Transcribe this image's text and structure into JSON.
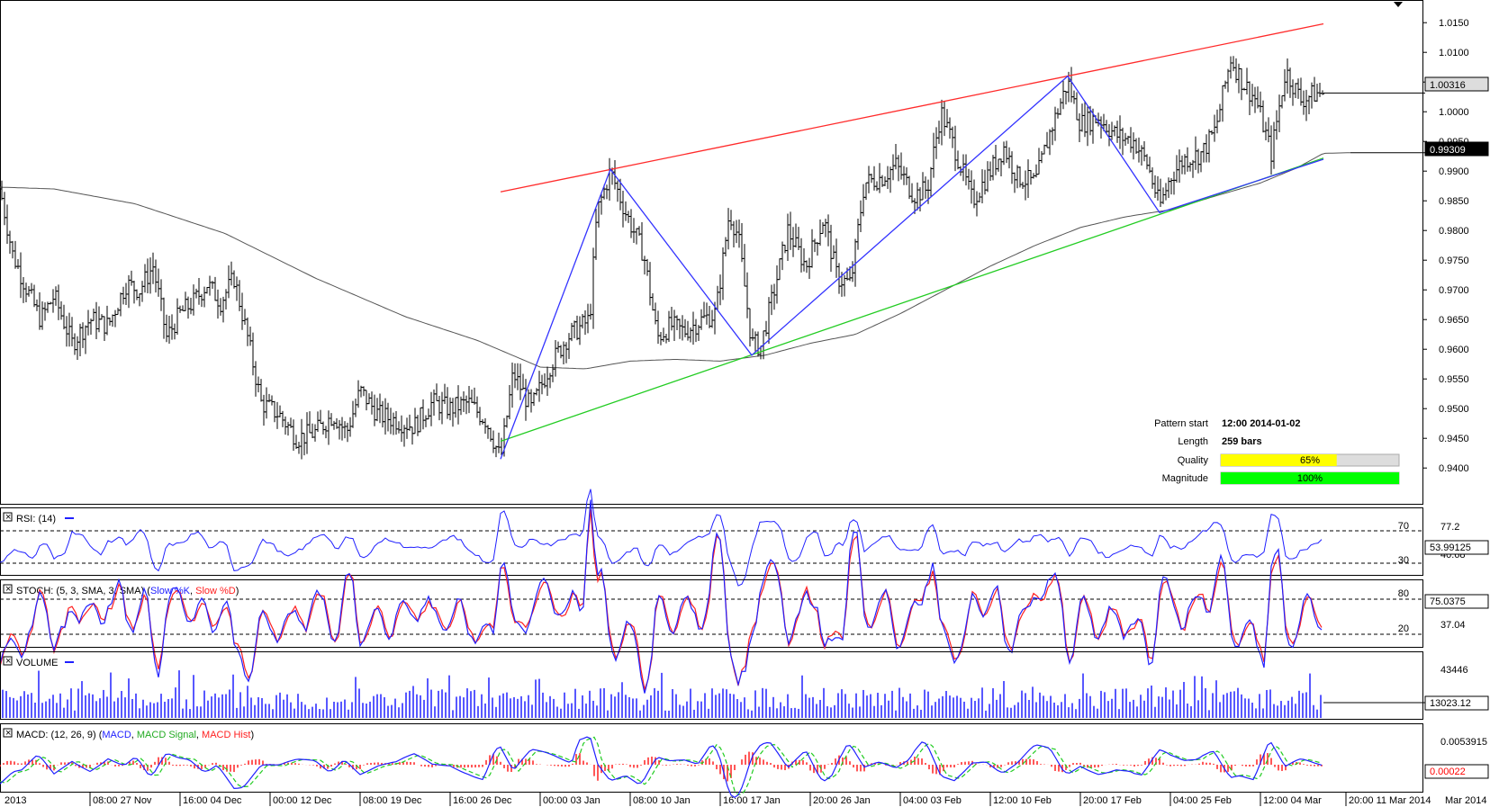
{
  "chart_data": {
    "type": "candlestick",
    "instrument_scale": {
      "price_ticks": [
        "1.0150",
        "1.0100",
        "1.0050",
        "1.0000",
        "0.9950",
        "0.9900",
        "0.9850",
        "0.9800",
        "0.9750",
        "0.9700",
        "0.9650",
        "0.9600",
        "0.9550",
        "0.9500",
        "0.9450",
        "0.9400"
      ],
      "price_range": [
        0.937,
        1.017
      ]
    },
    "x_labels": [
      "2013",
      "08:00 27 Nov",
      "16:00 04 Dec",
      "00:00 12 Dec",
      "08:00 19 Dec",
      "16:00 26 Dec",
      "00:00 03 Jan",
      "08:00 10 Jan",
      "16:00 17 Jan",
      "20:00 26 Jan",
      "04:00 03 Feb",
      "12:00 10 Feb",
      "20:00 17 Feb",
      "04:00 25 Feb",
      "12:00 04 Mar",
      "20:00 11 Mar 2014",
      "Mar 2014"
    ],
    "price_path": [
      [
        0,
        0.987
      ],
      [
        14,
        0.976
      ],
      [
        30,
        0.97
      ],
      [
        45,
        0.965
      ],
      [
        60,
        0.969
      ],
      [
        80,
        0.961
      ],
      [
        100,
        0.965
      ],
      [
        120,
        0.964
      ],
      [
        140,
        0.971
      ],
      [
        155,
        0.97
      ],
      [
        170,
        0.974
      ],
      [
        185,
        0.962
      ],
      [
        200,
        0.966
      ],
      [
        215,
        0.968
      ],
      [
        230,
        0.971
      ],
      [
        245,
        0.968
      ],
      [
        260,
        0.972
      ],
      [
        275,
        0.962
      ],
      [
        290,
        0.951
      ],
      [
        310,
        0.949
      ],
      [
        330,
        0.945
      ],
      [
        350,
        0.946
      ],
      [
        370,
        0.949
      ],
      [
        385,
        0.946
      ],
      [
        400,
        0.953
      ],
      [
        420,
        0.949
      ],
      [
        440,
        0.948
      ],
      [
        460,
        0.947
      ],
      [
        480,
        0.951
      ],
      [
        500,
        0.95
      ],
      [
        520,
        0.951
      ],
      [
        540,
        0.948
      ],
      [
        556,
        0.9415
      ],
      [
        570,
        0.956
      ],
      [
        590,
        0.95
      ],
      [
        610,
        0.957
      ],
      [
        630,
        0.962
      ],
      [
        655,
        0.965
      ],
      [
        663,
        0.983
      ],
      [
        678,
        0.99
      ],
      [
        695,
        0.983
      ],
      [
        715,
        0.976
      ],
      [
        730,
        0.962
      ],
      [
        745,
        0.964
      ],
      [
        760,
        0.963
      ],
      [
        780,
        0.965
      ],
      [
        795,
        0.966
      ],
      [
        810,
        0.983
      ],
      [
        820,
        0.979
      ],
      [
        835,
        0.961
      ],
      [
        845,
        0.9605
      ],
      [
        860,
        0.97
      ],
      [
        875,
        0.98
      ],
      [
        895,
        0.974
      ],
      [
        915,
        0.982
      ],
      [
        930,
        0.972
      ],
      [
        945,
        0.971
      ],
      [
        960,
        0.988
      ],
      [
        980,
        0.989
      ],
      [
        995,
        0.991
      ],
      [
        1015,
        0.986
      ],
      [
        1030,
        0.987
      ],
      [
        1045,
        1.0
      ],
      [
        1060,
        0.994
      ],
      [
        1080,
        0.985
      ],
      [
        1100,
        0.99
      ],
      [
        1115,
        0.994
      ],
      [
        1130,
        0.989
      ],
      [
        1150,
        0.988
      ],
      [
        1165,
        0.996
      ],
      [
        1186,
        1.005
      ],
      [
        1200,
        0.998
      ],
      [
        1220,
        0.999
      ],
      [
        1240,
        0.996
      ],
      [
        1260,
        0.995
      ],
      [
        1275,
        0.991
      ],
      [
        1288,
        0.984
      ],
      [
        1300,
        0.989
      ],
      [
        1315,
        0.992
      ],
      [
        1335,
        0.993
      ],
      [
        1350,
        0.997
      ],
      [
        1367,
        1.009
      ],
      [
        1380,
        1.005
      ],
      [
        1395,
        1.002
      ],
      [
        1412,
        0.993
      ],
      [
        1428,
        1.007
      ],
      [
        1445,
        1.002
      ],
      [
        1460,
        1.003
      ],
      [
        1470,
        1.0032
      ]
    ],
    "moving_average": [
      [
        0,
        0.9873
      ],
      [
        60,
        0.987
      ],
      [
        150,
        0.9845
      ],
      [
        250,
        0.9795
      ],
      [
        350,
        0.972
      ],
      [
        450,
        0.9655
      ],
      [
        530,
        0.9615
      ],
      [
        600,
        0.957
      ],
      [
        650,
        0.9567
      ],
      [
        700,
        0.958
      ],
      [
        750,
        0.9583
      ],
      [
        800,
        0.958
      ],
      [
        850,
        0.959
      ],
      [
        900,
        0.961
      ],
      [
        950,
        0.9625
      ],
      [
        1000,
        0.966
      ],
      [
        1050,
        0.97
      ],
      [
        1100,
        0.974
      ],
      [
        1150,
        0.9775
      ],
      [
        1200,
        0.9805
      ],
      [
        1250,
        0.9823
      ],
      [
        1300,
        0.9835
      ],
      [
        1350,
        0.9858
      ],
      [
        1400,
        0.988
      ],
      [
        1440,
        0.9905
      ],
      [
        1470,
        0.993
      ],
      [
        1500,
        0.9931
      ]
    ],
    "pattern_lines": {
      "resistance": [
        [
          556,
          0.9865
        ],
        [
          1470,
          1.0148
        ]
      ],
      "support": [
        [
          556,
          0.9445
        ],
        [
          1470,
          0.9922
        ]
      ],
      "zigzag": [
        [
          556,
          0.9415
        ],
        [
          678,
          0.9903
        ],
        [
          835,
          0.959
        ],
        [
          1186,
          1.006
        ],
        [
          1288,
          0.983
        ],
        [
          1470,
          0.992
        ]
      ]
    },
    "price_labels": {
      "current": "1.00316",
      "ma": "0.99309"
    },
    "pattern_info": {
      "start_label": "Pattern start",
      "start_value": "12:00 2014-01-02",
      "length_label": "Length",
      "length_value": "259 bars",
      "quality_label": "Quality",
      "quality_value": "65%",
      "quality_fraction": 0.65,
      "magnitude_label": "Magnitude",
      "magnitude_value": "100%",
      "magnitude_fraction": 1.0
    },
    "indicators": {
      "rsi": {
        "title": "RSI: (14)",
        "levels": [
          "70",
          "30"
        ],
        "scale_top": "77.2",
        "scale_mid": "40.68",
        "current": "53.99125"
      },
      "stoch": {
        "title_prefix": "STOCH: (5, 3, SMA, 3, SMA)",
        "k_label": "Slow %K",
        "d_label": "Slow %D",
        "levels": [
          "80",
          "20"
        ],
        "scale_mid": "37.04",
        "current": "75.0375"
      },
      "volume": {
        "title": "VOLUME",
        "scale_top": "43446",
        "current": "13023.12"
      },
      "macd": {
        "title_prefix": "MACD: (12, 26, 9)",
        "macd_label": "MACD",
        "signal_label": "MACD Signal",
        "hist_label": "MACD Hist",
        "scale_top": "0.0053915",
        "current": "0.00022"
      }
    }
  },
  "colors": {
    "candle": "#000000",
    "ma": "#555555",
    "resistance": "#ff2a2a",
    "support": "#22cc22",
    "zigzag": "#3333ff",
    "rsi": "#2020ff",
    "stoch_k": "#2020ff",
    "stoch_d": "#ff2020",
    "volume": "#2020ff",
    "macd": "#2020ff",
    "macd_signal": "#22cc22",
    "macd_hist": "#ff2020",
    "quality_bar": "#ffff00",
    "magnitude_bar": "#00ff00",
    "panel_border": "#000000"
  }
}
